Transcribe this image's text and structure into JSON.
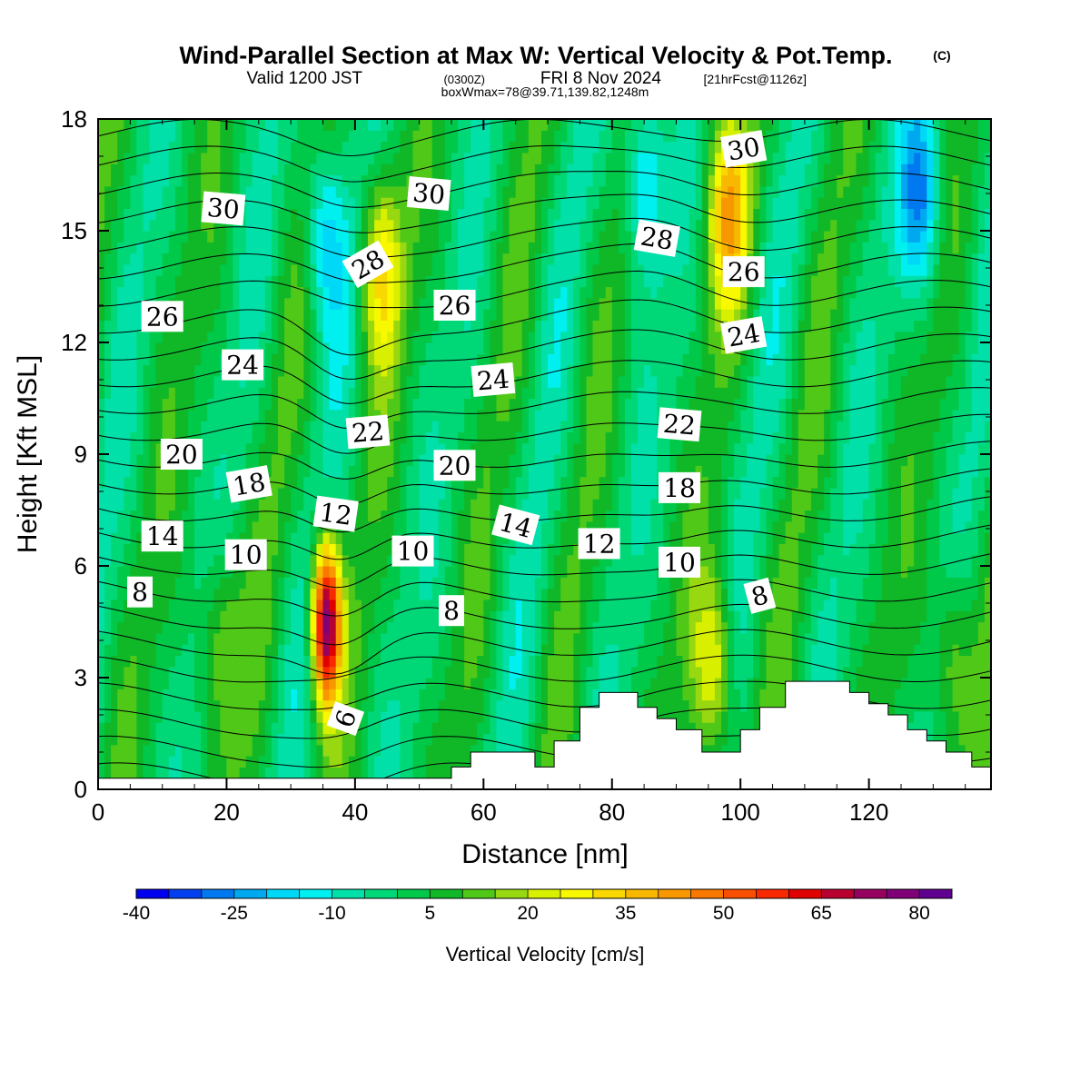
{
  "header": {
    "title": "Wind-Parallel Section at Max W: Vertical Velocity & Pot.Temp.",
    "title_mark": "(C)",
    "valid_prefix": "Valid 1200 JST",
    "valid_utc": "(0300Z)",
    "valid_date": "FRI 8 Nov 2024",
    "valid_fcst": "[21hrFcst@1126z]",
    "box_info": "boxWmax=78@39.71,139.82,1248m"
  },
  "chart_data": {
    "type": "heatmap",
    "xlabel": "Distance [nm]",
    "ylabel": "Height [Kft MSL]",
    "xlim": [
      0,
      139
    ],
    "ylim": [
      0,
      18
    ],
    "x_ticks": [
      "0",
      "20",
      "40",
      "60",
      "80",
      "100",
      "120"
    ],
    "y_ticks": [
      "0",
      "3",
      "6",
      "9",
      "12",
      "15",
      "18"
    ],
    "colorbar": {
      "label": "Vertical Velocity [cm/s]",
      "tick_labels": [
        "-40",
        "-25",
        "-10",
        "5",
        "20",
        "35",
        "50",
        "65",
        "80"
      ],
      "levels": [
        -40,
        -35,
        -30,
        -25,
        -20,
        -15,
        -10,
        -5,
        0,
        5,
        10,
        15,
        20,
        25,
        30,
        35,
        40,
        45,
        50,
        55,
        60,
        65,
        70,
        75,
        80,
        85
      ],
      "colors": [
        "#0000f0",
        "#0040f0",
        "#0078f0",
        "#00a8f0",
        "#00d8f8",
        "#00f0f0",
        "#00e0a8",
        "#00d878",
        "#00c848",
        "#10b828",
        "#50c818",
        "#98d810",
        "#d8f000",
        "#f8f800",
        "#f8d800",
        "#f8b800",
        "#f89800",
        "#f87800",
        "#f85000",
        "#f82800",
        "#e00000",
        "#b80030",
        "#980060",
        "#800078",
        "#600090"
      ]
    },
    "w_features": [
      {
        "type": "updraft",
        "x": 35.5,
        "z": 4.5,
        "w": 78
      },
      {
        "type": "updraft",
        "x": 96,
        "z": 3.2,
        "w": 28
      },
      {
        "type": "updraft",
        "x": 133,
        "z": 3.5,
        "w": 20
      },
      {
        "type": "updraft",
        "x": 19,
        "z": 4,
        "w": 18
      },
      {
        "type": "updraft",
        "x": 44,
        "z": 14,
        "w": 30
      },
      {
        "type": "updraft",
        "x": 98,
        "z": 15.5,
        "w": 35
      },
      {
        "type": "downdraft",
        "x": 35,
        "z": 15,
        "w": -20
      },
      {
        "type": "downdraft",
        "x": 85,
        "z": 16.5,
        "w": -20
      },
      {
        "type": "downdraft",
        "x": 128,
        "z": 16,
        "w": -25
      }
    ],
    "terrain": [
      [
        0,
        0.3
      ],
      [
        55,
        0.3
      ],
      [
        55,
        0.6
      ],
      [
        58,
        0.6
      ],
      [
        58,
        1.0
      ],
      [
        68,
        1.0
      ],
      [
        68,
        0.6
      ],
      [
        71,
        0.6
      ],
      [
        71,
        1.3
      ],
      [
        75,
        1.3
      ],
      [
        75,
        2.2
      ],
      [
        78,
        2.2
      ],
      [
        78,
        2.6
      ],
      [
        84,
        2.6
      ],
      [
        84,
        2.2
      ],
      [
        87,
        2.2
      ],
      [
        87,
        1.9
      ],
      [
        90,
        1.9
      ],
      [
        90,
        1.6
      ],
      [
        94,
        1.6
      ],
      [
        94,
        1.0
      ],
      [
        100,
        1.0
      ],
      [
        100,
        1.6
      ],
      [
        103,
        1.6
      ],
      [
        103,
        2.2
      ],
      [
        107,
        2.2
      ],
      [
        107,
        2.9
      ],
      [
        117,
        2.9
      ],
      [
        117,
        2.6
      ],
      [
        120,
        2.6
      ],
      [
        120,
        2.3
      ],
      [
        123,
        2.3
      ],
      [
        123,
        2.0
      ],
      [
        126,
        2.0
      ],
      [
        126,
        1.6
      ],
      [
        129,
        1.6
      ],
      [
        129,
        1.3
      ],
      [
        132,
        1.3
      ],
      [
        132,
        1.0
      ],
      [
        136,
        1.0
      ],
      [
        136,
        0.6
      ],
      [
        139,
        0.6
      ]
    ],
    "contour_labels": [
      {
        "text": "6",
        "x": 38.5,
        "z": 1.9,
        "rot": -70
      },
      {
        "text": "8",
        "x": 6.5,
        "z": 5.3,
        "rot": 0
      },
      {
        "text": "8",
        "x": 55,
        "z": 4.8,
        "rot": 0
      },
      {
        "text": "8",
        "x": 103,
        "z": 5.2,
        "rot": -15
      },
      {
        "text": "10",
        "x": 23,
        "z": 6.3,
        "rot": 0
      },
      {
        "text": "10",
        "x": 49,
        "z": 6.4,
        "rot": 0
      },
      {
        "text": "10",
        "x": 90.5,
        "z": 6.1,
        "rot": 0
      },
      {
        "text": "12",
        "x": 37,
        "z": 7.4,
        "rot": 8
      },
      {
        "text": "12",
        "x": 78,
        "z": 6.6,
        "rot": 0
      },
      {
        "text": "14",
        "x": 10,
        "z": 6.8,
        "rot": 0
      },
      {
        "text": "14",
        "x": 65,
        "z": 7.1,
        "rot": 15
      },
      {
        "text": "18",
        "x": 23.5,
        "z": 8.2,
        "rot": -10
      },
      {
        "text": "18",
        "x": 90.5,
        "z": 8.1,
        "rot": 0
      },
      {
        "text": "20",
        "x": 13,
        "z": 9.0,
        "rot": 0
      },
      {
        "text": "20",
        "x": 55.5,
        "z": 8.7,
        "rot": 0
      },
      {
        "text": "22",
        "x": 42,
        "z": 9.6,
        "rot": -5
      },
      {
        "text": "22",
        "x": 90.5,
        "z": 9.8,
        "rot": 5
      },
      {
        "text": "24",
        "x": 22.5,
        "z": 11.4,
        "rot": 0
      },
      {
        "text": "24",
        "x": 61.5,
        "z": 11.0,
        "rot": -5
      },
      {
        "text": "24",
        "x": 100.5,
        "z": 12.2,
        "rot": -10
      },
      {
        "text": "26",
        "x": 10,
        "z": 12.7,
        "rot": 0
      },
      {
        "text": "26",
        "x": 55.5,
        "z": 13.0,
        "rot": 0
      },
      {
        "text": "26",
        "x": 100.5,
        "z": 13.9,
        "rot": 0
      },
      {
        "text": "28",
        "x": 42,
        "z": 14.1,
        "rot": -30
      },
      {
        "text": "28",
        "x": 87,
        "z": 14.8,
        "rot": 10
      },
      {
        "text": "30",
        "x": 19.5,
        "z": 15.6,
        "rot": 5
      },
      {
        "text": "30",
        "x": 51.5,
        "z": 16.0,
        "rot": 5
      },
      {
        "text": "30",
        "x": 100.5,
        "z": 17.2,
        "rot": -10
      }
    ]
  }
}
